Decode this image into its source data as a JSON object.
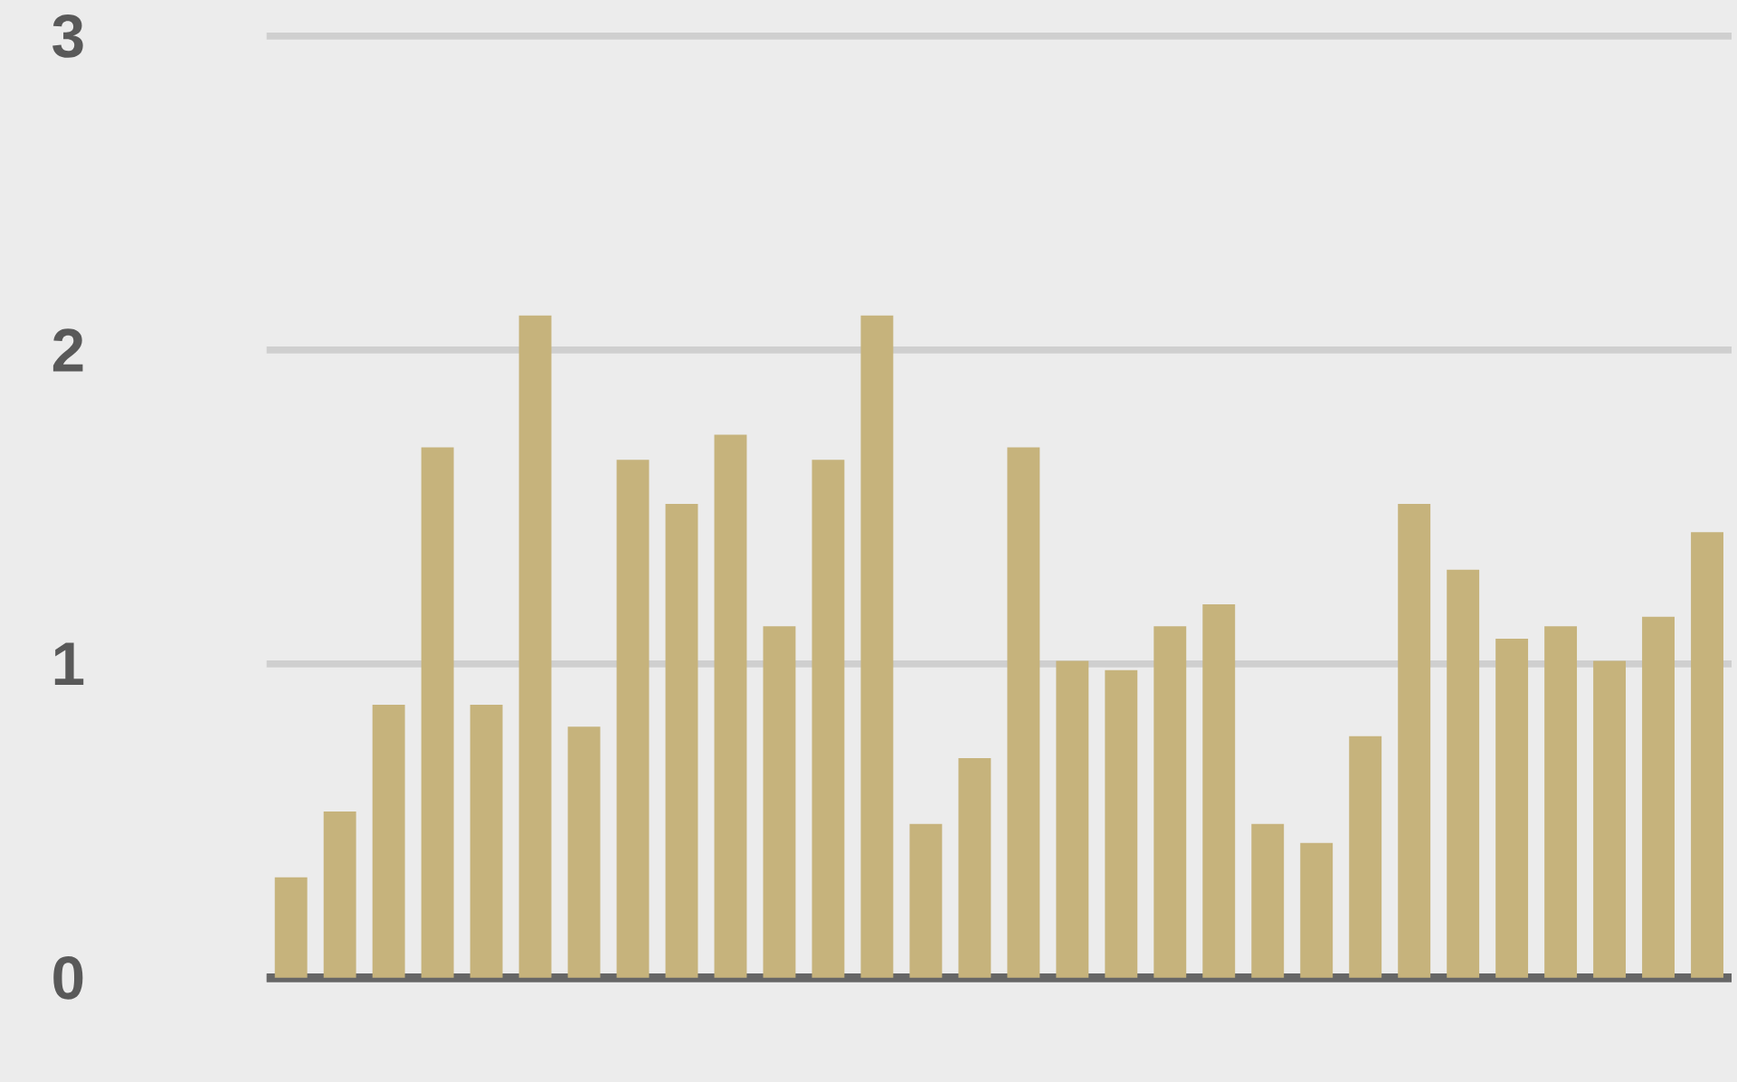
{
  "chart_data": {
    "type": "bar",
    "categories": [
      null,
      null,
      null,
      null,
      null,
      null,
      null,
      null,
      null,
      null,
      null,
      null,
      null,
      null,
      null,
      null,
      null,
      null,
      null,
      null,
      null,
      null,
      null,
      null,
      null,
      null,
      null,
      null,
      null,
      null
    ],
    "values": [
      0.32,
      0.53,
      0.87,
      1.69,
      0.87,
      2.11,
      0.8,
      1.65,
      1.51,
      1.73,
      1.12,
      1.65,
      2.11,
      0.49,
      0.7,
      1.69,
      1.01,
      0.98,
      1.12,
      1.19,
      0.49,
      0.43,
      0.77,
      1.51,
      1.3,
      1.08,
      1.12,
      1.01,
      1.15,
      1.42
    ],
    "color": "#c6b37c",
    "ylim": [
      0,
      3
    ],
    "yticks": [
      0,
      1,
      2,
      3
    ],
    "grid": "y"
  }
}
